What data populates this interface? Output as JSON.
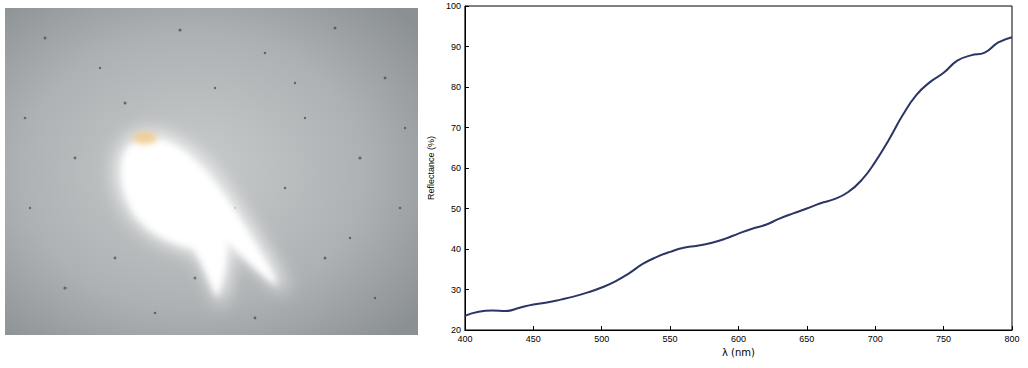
{
  "chart_data": {
    "type": "line",
    "x_label": "λ (nm)",
    "y_label": "Reflectance (%)",
    "x": [
      400,
      410,
      420,
      430,
      440,
      450,
      460,
      470,
      480,
      490,
      500,
      510,
      520,
      530,
      540,
      550,
      560,
      570,
      580,
      590,
      600,
      610,
      620,
      630,
      640,
      650,
      660,
      670,
      680,
      690,
      700,
      710,
      720,
      730,
      740,
      750,
      760,
      770,
      780,
      790,
      800
    ],
    "values": [
      23.5,
      24.5,
      24.8,
      24.7,
      25.5,
      26.3,
      26.8,
      27.5,
      28.3,
      29.3,
      30.5,
      32.0,
      34.0,
      36.3,
      38.0,
      39.3,
      40.3,
      40.8,
      41.5,
      42.5,
      43.8,
      45.0,
      46.0,
      47.5,
      48.8,
      50.0,
      51.3,
      52.3,
      54.0,
      57.0,
      61.5,
      67.0,
      73.0,
      78.0,
      81.2,
      83.5,
      86.5,
      87.8,
      88.5,
      91.0,
      92.3
    ],
    "color": "#2b3566",
    "xlim": [
      400,
      800
    ],
    "ylim": [
      20,
      100
    ],
    "xticks": [
      400,
      450,
      500,
      550,
      600,
      650,
      700,
      750,
      800
    ],
    "yticks": [
      20,
      30,
      40,
      50,
      60,
      70,
      80,
      90,
      100
    ],
    "grid": false
  }
}
